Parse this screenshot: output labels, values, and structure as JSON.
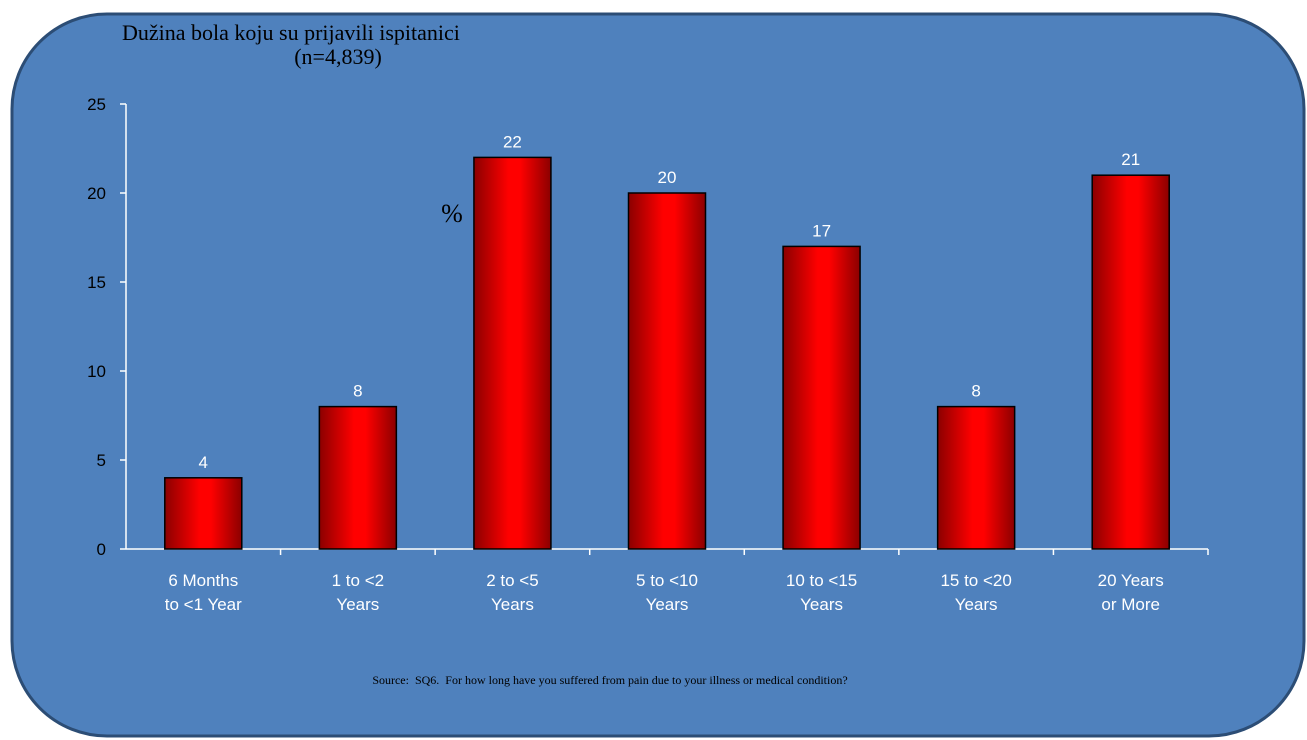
{
  "chart_data": {
    "type": "bar",
    "title": "Dužina bola koju su prijavili ispitanici",
    "subtitle": "(n=4,839)",
    "ylabel": "%",
    "xlabel": "",
    "categories": [
      [
        "6 Months",
        "to <1 Year"
      ],
      [
        "1 to <2",
        "Years"
      ],
      [
        "2 to <5",
        "Years"
      ],
      [
        "5 to <10",
        "Years"
      ],
      [
        "10 to <15",
        "Years"
      ],
      [
        "15 to <20",
        "Years"
      ],
      [
        "20 Years",
        "or More"
      ]
    ],
    "values": [
      4,
      8,
      22,
      20,
      17,
      8,
      21
    ],
    "ylim": [
      0,
      25
    ],
    "yticks": [
      0,
      5,
      10,
      15,
      20,
      25
    ],
    "grid": false,
    "legend": "none",
    "source": "Source:  SQ6.  For how long have you suffered from pain due to your illness or medical condition?"
  },
  "colors": {
    "panel_fill": "#4F81BD",
    "panel_border": "#2C4D75",
    "bar_light": "#FF0000",
    "bar_dark": "#8B0000",
    "axis": "#FFFFFF",
    "text": "#000000"
  }
}
